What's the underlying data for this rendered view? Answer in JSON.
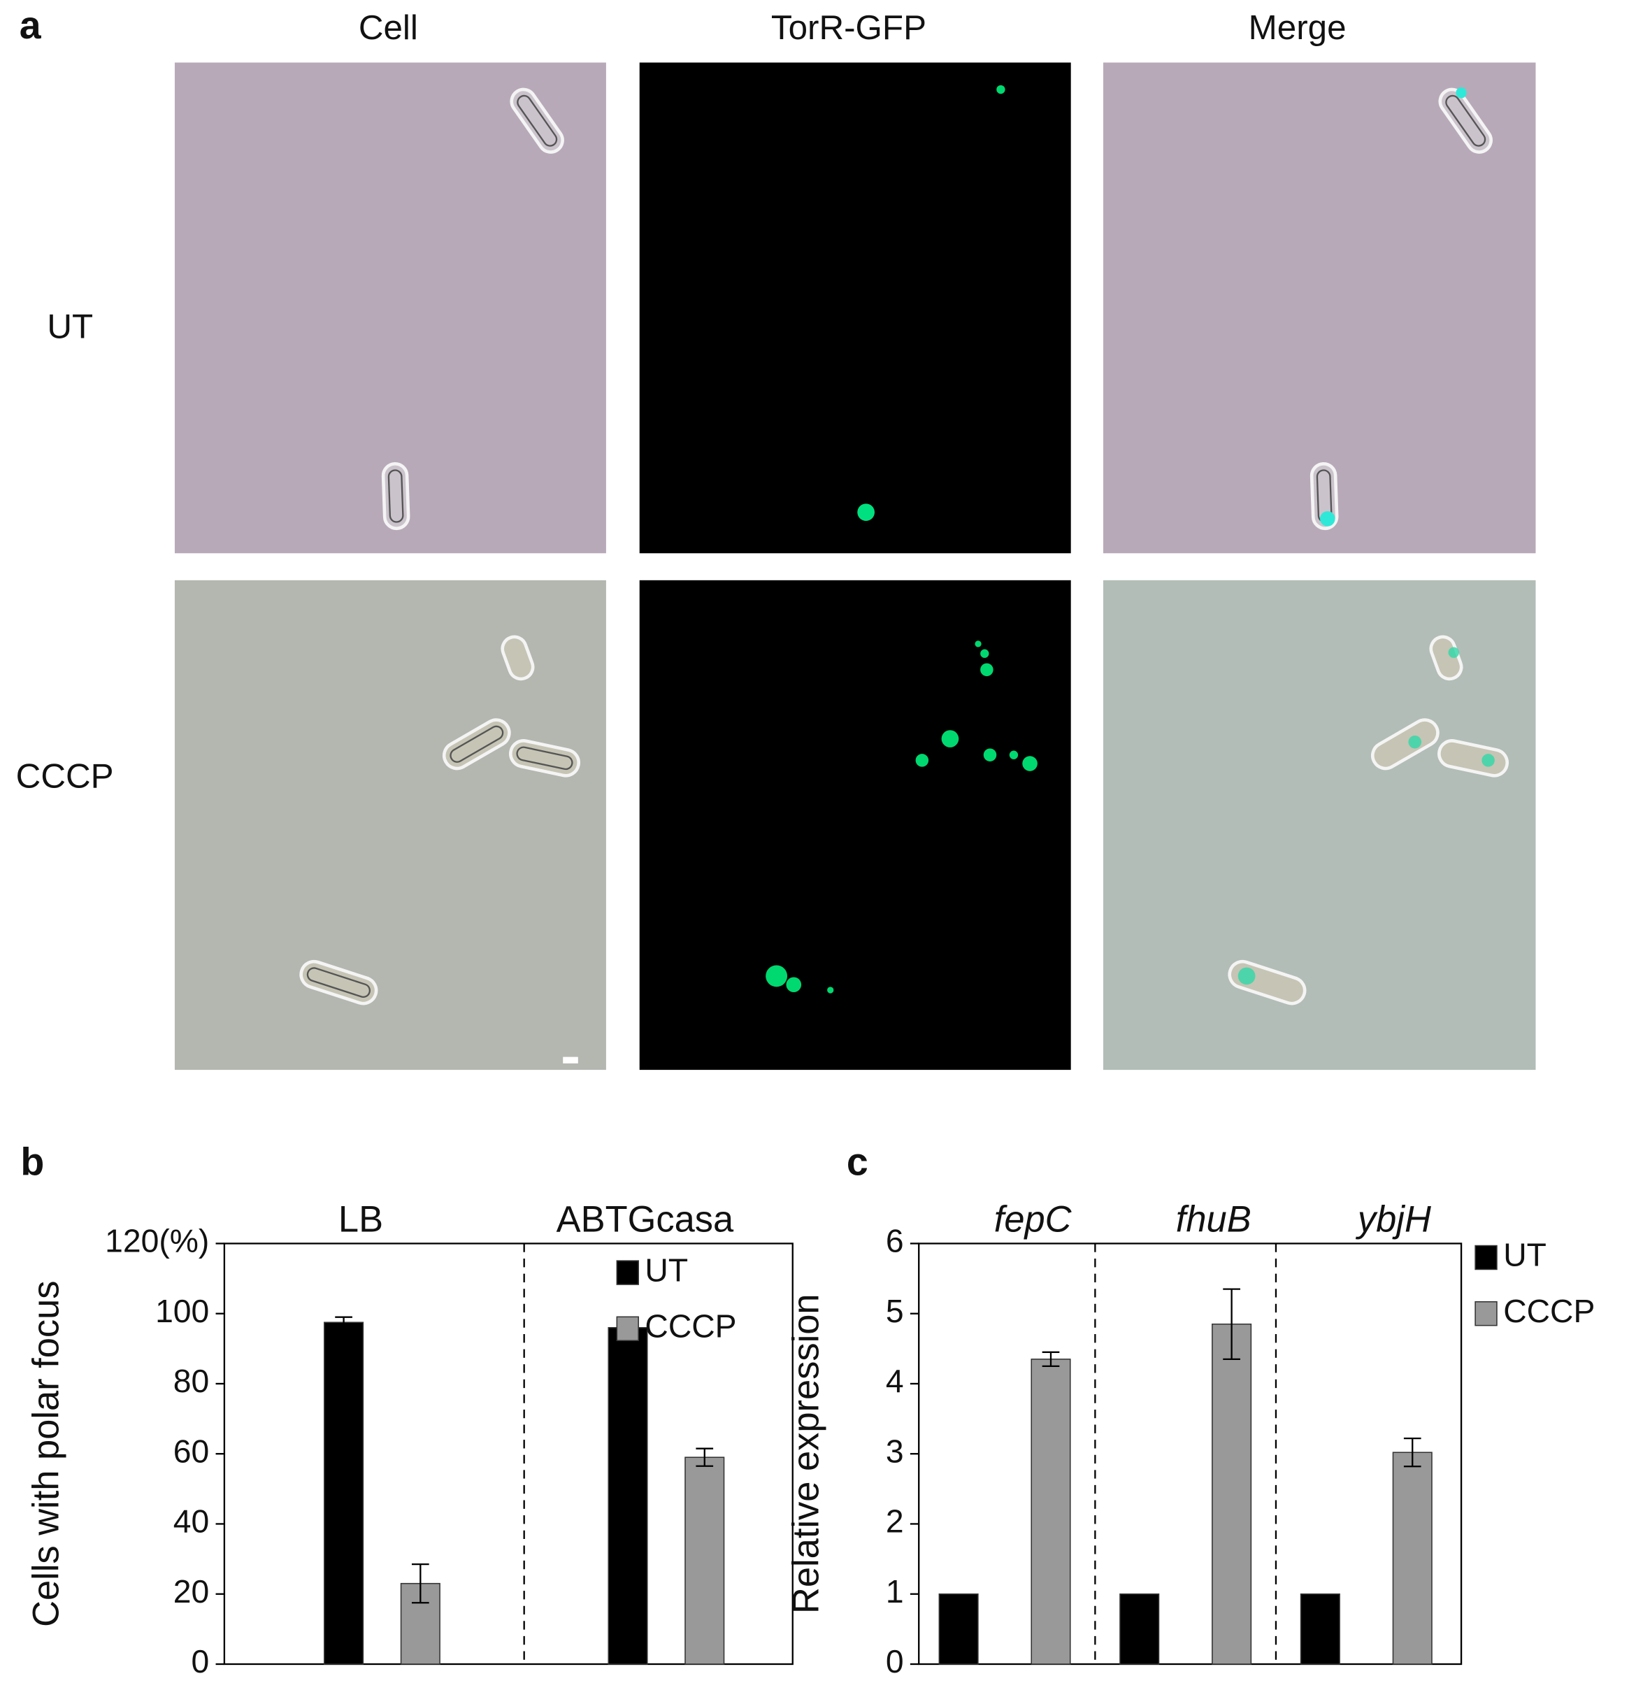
{
  "panel_a": {
    "label": "a",
    "columns": [
      "Cell",
      "TorR-GFP",
      "Merge"
    ],
    "rows": [
      "UT",
      "CCCP"
    ]
  },
  "chart_data": [
    {
      "type": "bar",
      "panel_label": "b",
      "ylabel": "Cells with polar focus",
      "categories": [
        "LB",
        "ABTGcasa"
      ],
      "series": [
        {
          "name": "UT",
          "color": "#000000",
          "values": [
            97.5,
            96
          ],
          "errors": [
            1.5,
            1.5
          ]
        },
        {
          "name": "CCCP",
          "color": "#999999",
          "values": [
            23,
            59
          ],
          "errors": [
            5.5,
            2.5
          ]
        }
      ],
      "ylim": [
        0,
        120
      ],
      "yticks": [
        0,
        20,
        40,
        60,
        80,
        100,
        {
          "value": 120,
          "label": "120(%)"
        }
      ],
      "legend": "top-right"
    },
    {
      "type": "bar",
      "panel_label": "c",
      "ylabel": "Relative expression",
      "categories": [
        "fepC",
        "fhuB",
        "ybjH"
      ],
      "category_style": "italic",
      "series": [
        {
          "name": "UT",
          "color": "#000000",
          "values": [
            1,
            1,
            1
          ],
          "errors": [
            0,
            0,
            0
          ]
        },
        {
          "name": "CCCP",
          "color": "#999999",
          "values": [
            4.35,
            4.85,
            3.02
          ],
          "errors": [
            0.1,
            0.5,
            0.2
          ]
        }
      ],
      "ylim": [
        0,
        6
      ],
      "yticks": [
        0,
        1,
        2,
        3,
        4,
        5,
        6
      ],
      "legend": "right-outside"
    }
  ]
}
